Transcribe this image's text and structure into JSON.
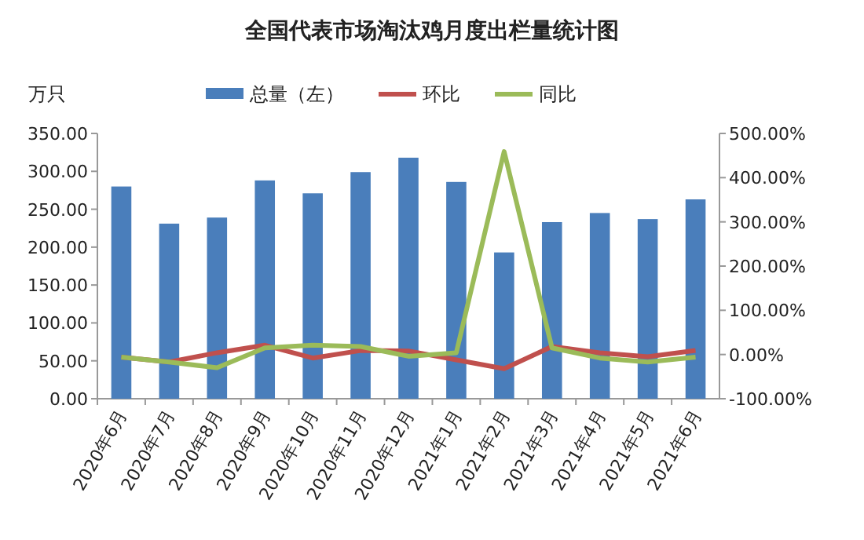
{
  "chart_data": {
    "type": "bar",
    "title": "全国代表市场淘汰鸡月度出栏量统计图",
    "ylabel": "万只",
    "categories": [
      "2020年6月",
      "2020年7月",
      "2020年8月",
      "2020年9月",
      "2020年10月",
      "2020年11月",
      "2020年12月",
      "2021年1月",
      "2021年2月",
      "2021年3月",
      "2021年4月",
      "2021年5月",
      "2021年6月"
    ],
    "series": [
      {
        "name": "总量（左）",
        "color": "#4a7ebb",
        "values": [
          280,
          231,
          239,
          288,
          271,
          299,
          318,
          286,
          193,
          233,
          245,
          237,
          263
        ]
      },
      {
        "name": "环比",
        "type": "line",
        "axis": "y2",
        "color": "#c0504d",
        "values": [
          -6,
          -17,
          4,
          21,
          -8,
          9,
          8,
          -12,
          -32,
          18,
          4,
          -5,
          9
        ]
      },
      {
        "name": "同比",
        "type": "line",
        "axis": "y2",
        "color": "#9bbb59",
        "values": [
          -6,
          -17,
          -30,
          15,
          21,
          18,
          -4,
          4,
          459,
          15,
          -8,
          -17,
          -6
        ]
      }
    ],
    "ylim": [
      0,
      350
    ],
    "yticks": [
      {
        "value": 0,
        "label": "0.00"
      },
      {
        "value": 50,
        "label": "50.00"
      },
      {
        "value": 100,
        "label": "100.00"
      },
      {
        "value": 150,
        "label": "150.00"
      },
      {
        "value": 200,
        "label": "200.00"
      },
      {
        "value": 250,
        "label": "250.00"
      },
      {
        "value": 300,
        "label": "300.00"
      },
      {
        "value": 350,
        "label": "350.00"
      }
    ],
    "y2lim": [
      -100,
      500
    ],
    "y2ticks": [
      {
        "value": -100,
        "label": "-100.00%"
      },
      {
        "value": 0,
        "label": "0.00%"
      },
      {
        "value": 100,
        "label": "100.00%"
      },
      {
        "value": 200,
        "label": "200.00%"
      },
      {
        "value": 300,
        "label": "300.00%"
      },
      {
        "value": 400,
        "label": "400.00%"
      },
      {
        "value": 500,
        "label": "500.00%"
      }
    ],
    "legend": "top"
  }
}
